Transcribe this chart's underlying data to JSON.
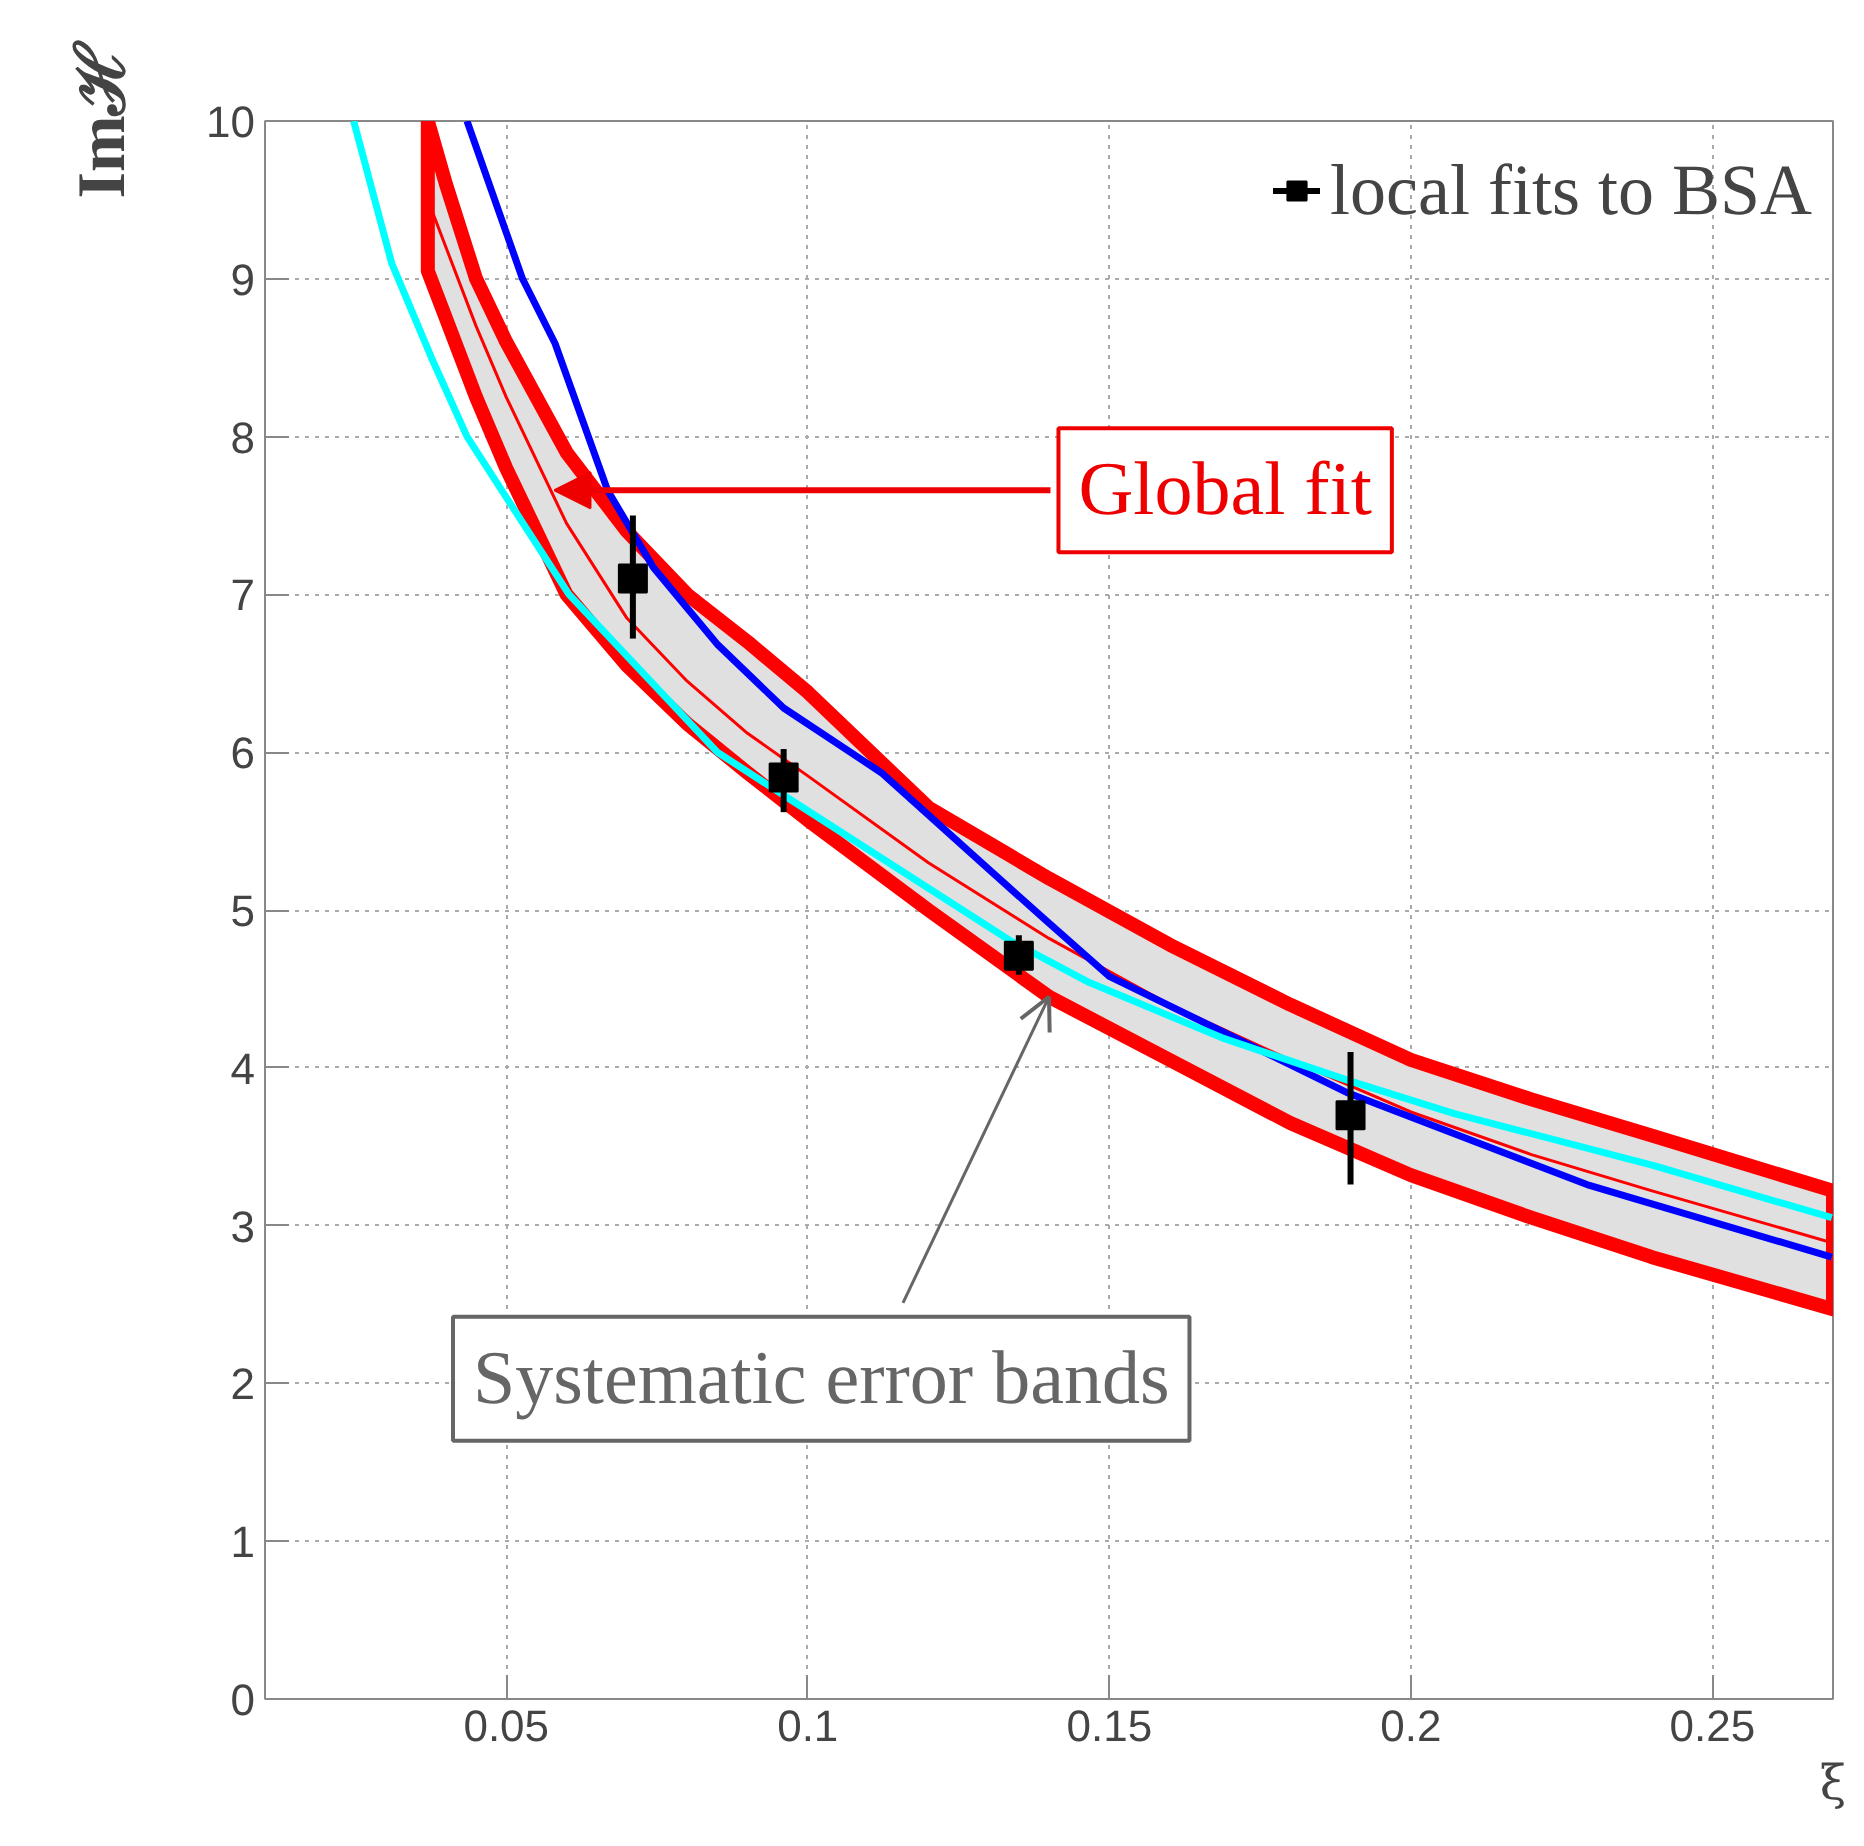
{
  "chart_data": {
    "type": "line",
    "xlabel": "ξ",
    "ylabel": "Imℋ",
    "xlim": [
      0.01,
      0.27
    ],
    "ylim": [
      0,
      10
    ],
    "xticks": [
      0.05,
      0.1,
      0.15,
      0.2,
      0.25
    ],
    "yticks": [
      0,
      1,
      2,
      3,
      4,
      5,
      6,
      7,
      8,
      9,
      10
    ],
    "grid": true,
    "legend": "top right",
    "series": [
      {
        "color": "#ff0000",
        "x": [
          0.037,
          0.04,
          0.045,
          0.05,
          0.06,
          0.07,
          0.08,
          0.09,
          0.1,
          0.12,
          0.14,
          0.16,
          0.18,
          0.2,
          0.22,
          0.24,
          0.27
        ],
        "values": [
          9.5,
          9.2,
          8.7,
          8.25,
          7.45,
          6.85,
          6.45,
          6.12,
          5.85,
          5.3,
          4.82,
          4.4,
          4.05,
          3.72,
          3.45,
          3.22,
          2.89
        ],
        "lower": [
          9.05,
          8.75,
          8.25,
          7.8,
          7.0,
          6.55,
          6.18,
          5.87,
          5.57,
          5.0,
          4.45,
          4.05,
          3.65,
          3.32,
          3.05,
          2.8,
          2.47
        ],
        "upper": [
          10,
          9.6,
          9.0,
          8.6,
          7.9,
          7.4,
          7.0,
          6.7,
          6.38,
          5.65,
          5.2,
          4.78,
          4.4,
          4.05,
          3.8,
          3.57,
          3.22
        ]
      },
      {
        "color": "#0000ff",
        "x": [
          0.0435,
          0.0527,
          0.0581,
          0.0668,
          0.0744,
          0.0851,
          0.096,
          0.1122,
          0.1393,
          0.15,
          0.1896,
          0.2292,
          0.2698
        ],
        "values": [
          10,
          9.0,
          8.59,
          7.66,
          7.17,
          6.68,
          6.28,
          5.87,
          4.94,
          4.58,
          3.84,
          3.26,
          2.8
        ]
      },
      {
        "color": "#00ffff",
        "x": [
          0.0247,
          0.031,
          0.0376,
          0.0435,
          0.0604,
          0.085,
          0.0971,
          0.1334,
          0.1467,
          0.1687,
          0.1896,
          0.2072,
          0.2403,
          0.2698
        ],
        "values": [
          10,
          9.1,
          8.5,
          8.0,
          7.0,
          6.0,
          5.7,
          4.81,
          4.54,
          4.19,
          3.92,
          3.71,
          3.38,
          3.05
        ]
      },
      {
        "type": "scatter",
        "name": "local fits to BSA",
        "color": "#000000",
        "marker": "square",
        "x": [
          0.071,
          0.096,
          0.135,
          0.19
        ],
        "values": [
          7.1,
          5.84,
          4.71,
          3.7
        ],
        "errors": [
          [
            6.72,
            7.5
          ],
          [
            5.62,
            6.02
          ],
          [
            4.59,
            4.84
          ],
          [
            3.26,
            4.1
          ]
        ]
      }
    ],
    "annotations": [
      {
        "text": "Global fit",
        "x": 0.058,
        "y": 7.66
      },
      {
        "text": "Systematic error bands",
        "x": 0.14,
        "y": 4.45
      }
    ]
  }
}
